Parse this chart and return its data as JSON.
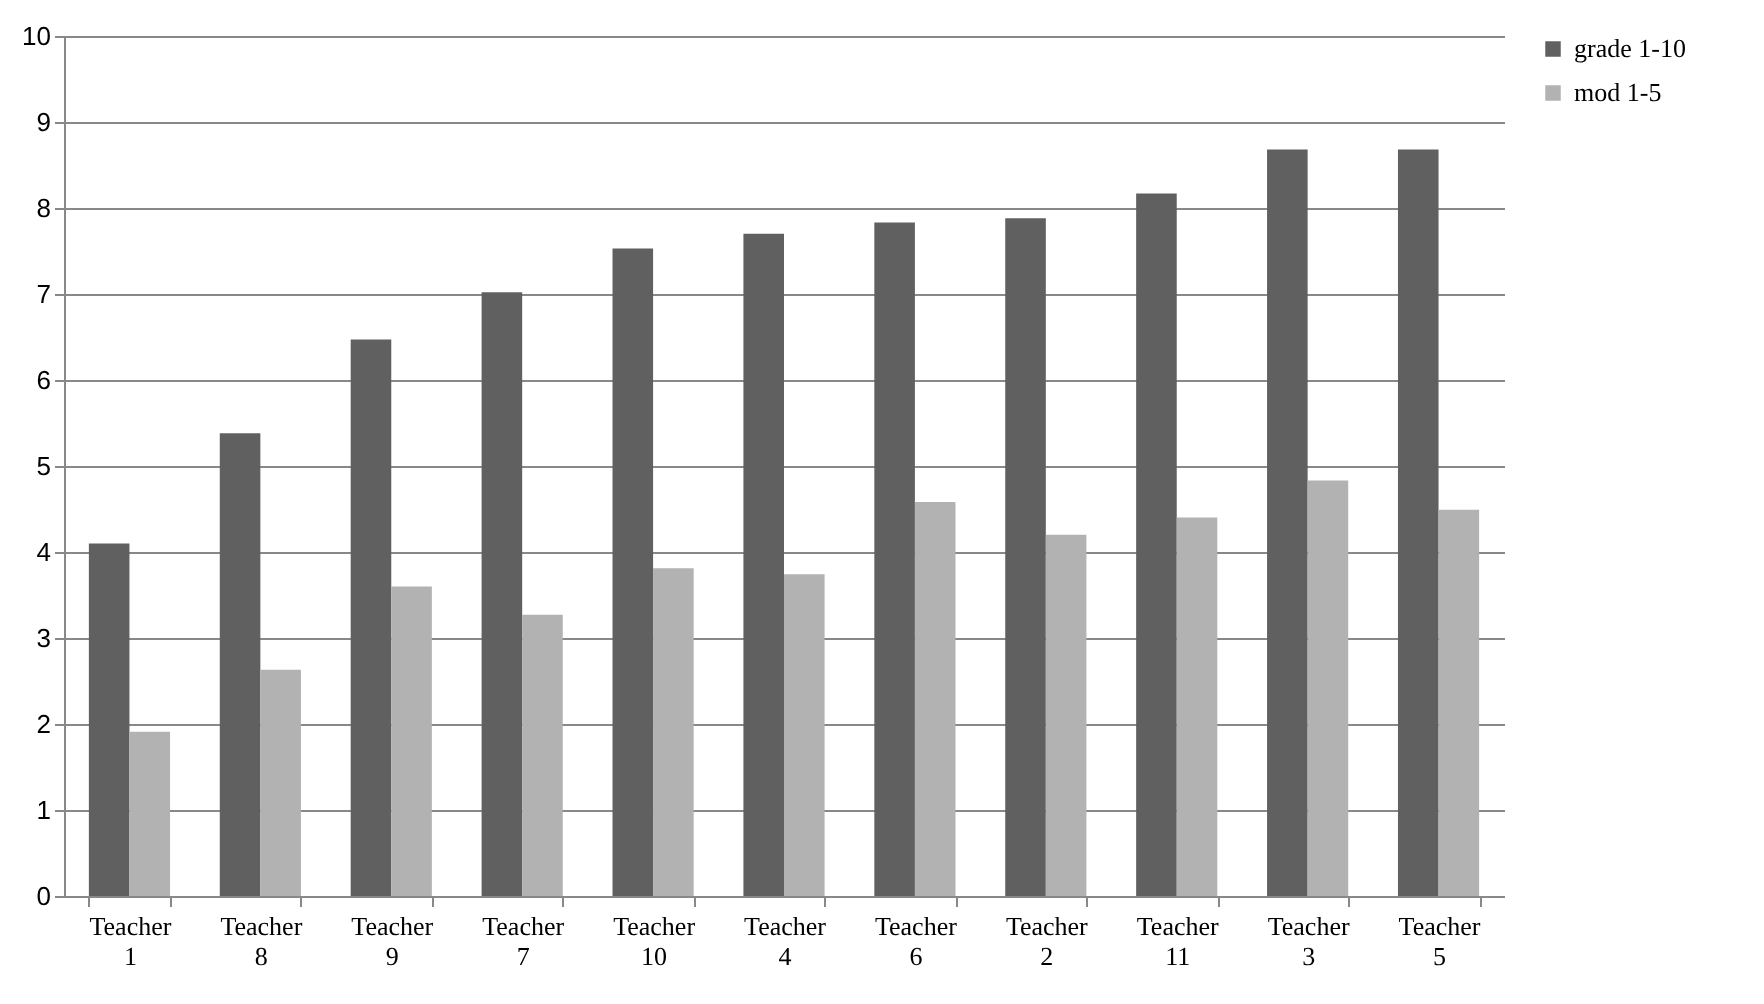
{
  "chart_data": {
    "type": "bar",
    "categories": [
      "Teacher 1",
      "Teacher 8",
      "Teacher 9",
      "Teacher 7",
      "Teacher 10",
      "Teacher 4",
      "Teacher 6",
      "Teacher 2",
      "Teacher 11",
      "Teacher 3",
      "Teacher 5"
    ],
    "series": [
      {
        "name": "grade 1-10",
        "color": "#606060",
        "values": [
          4.1,
          5.38,
          6.47,
          7.02,
          7.53,
          7.7,
          7.83,
          7.88,
          8.17,
          8.68,
          8.68
        ]
      },
      {
        "name": "mod 1-5",
        "color": "#b2b2b2",
        "values": [
          1.91,
          2.63,
          3.6,
          3.27,
          3.81,
          3.74,
          4.58,
          4.2,
          4.4,
          4.83,
          4.49
        ]
      }
    ],
    "ylim": [
      0,
      10
    ],
    "yticks": [
      0,
      1,
      2,
      3,
      4,
      5,
      6,
      7,
      8,
      9,
      10
    ],
    "grid": "y",
    "legend": "right"
  }
}
